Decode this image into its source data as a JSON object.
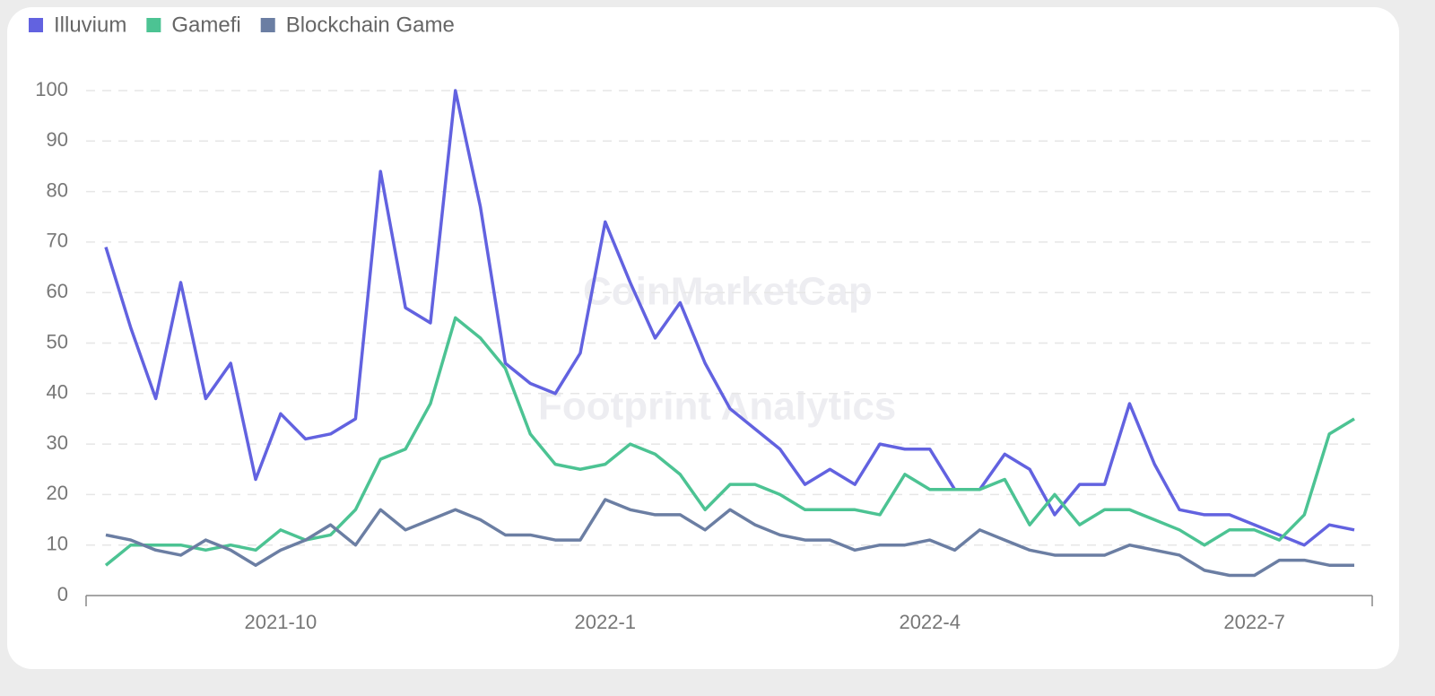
{
  "chart_data": {
    "type": "line",
    "watermarks": [
      "CoinMarketCap",
      "Footprint Analytics"
    ],
    "categories": [
      null,
      null,
      null,
      null,
      null,
      null,
      null,
      "2021-10",
      null,
      null,
      null,
      null,
      null,
      null,
      null,
      null,
      null,
      null,
      null,
      null,
      "2022-1",
      null,
      null,
      null,
      null,
      null,
      null,
      null,
      null,
      null,
      null,
      null,
      null,
      "2022-4",
      null,
      null,
      null,
      null,
      null,
      null,
      null,
      null,
      null,
      null,
      null,
      null,
      "2022-7",
      null,
      null,
      null,
      null
    ],
    "series": [
      {
        "name": "Illuvium",
        "color": "#6262e0",
        "values": [
          69,
          53,
          39,
          62,
          39,
          46,
          23,
          36,
          31,
          32,
          35,
          84,
          57,
          54,
          100,
          77,
          46,
          42,
          40,
          48,
          74,
          62,
          51,
          58,
          46,
          37,
          33,
          29,
          22,
          25,
          22,
          30,
          29,
          29,
          21,
          21,
          28,
          25,
          16,
          22,
          22,
          38,
          26,
          17,
          16,
          16,
          14,
          12,
          10,
          14,
          13
        ]
      },
      {
        "name": "Gamefi",
        "color": "#4cc393",
        "values": [
          6,
          10,
          10,
          10,
          9,
          10,
          9,
          13,
          11,
          12,
          17,
          27,
          29,
          38,
          55,
          51,
          45,
          32,
          26,
          25,
          26,
          30,
          28,
          24,
          17,
          22,
          22,
          20,
          17,
          17,
          17,
          16,
          24,
          21,
          21,
          21,
          23,
          14,
          20,
          14,
          17,
          17,
          15,
          13,
          10,
          13,
          13,
          11,
          16,
          32,
          35
        ]
      },
      {
        "name": "Blockchain Game",
        "color": "#6b7ea3",
        "values": [
          12,
          11,
          9,
          8,
          11,
          9,
          6,
          9,
          11,
          14,
          10,
          17,
          13,
          15,
          17,
          15,
          12,
          12,
          11,
          11,
          19,
          17,
          16,
          16,
          13,
          17,
          14,
          12,
          11,
          11,
          9,
          10,
          10,
          11,
          9,
          13,
          11,
          9,
          8,
          8,
          8,
          10,
          9,
          8,
          5,
          4,
          4,
          7,
          7,
          6,
          6
        ]
      }
    ],
    "ylim": [
      0,
      100
    ],
    "yticks": [
      0,
      10,
      20,
      30,
      40,
      50,
      60,
      70,
      80,
      90,
      100
    ],
    "grid": true,
    "legend": "top-left"
  }
}
